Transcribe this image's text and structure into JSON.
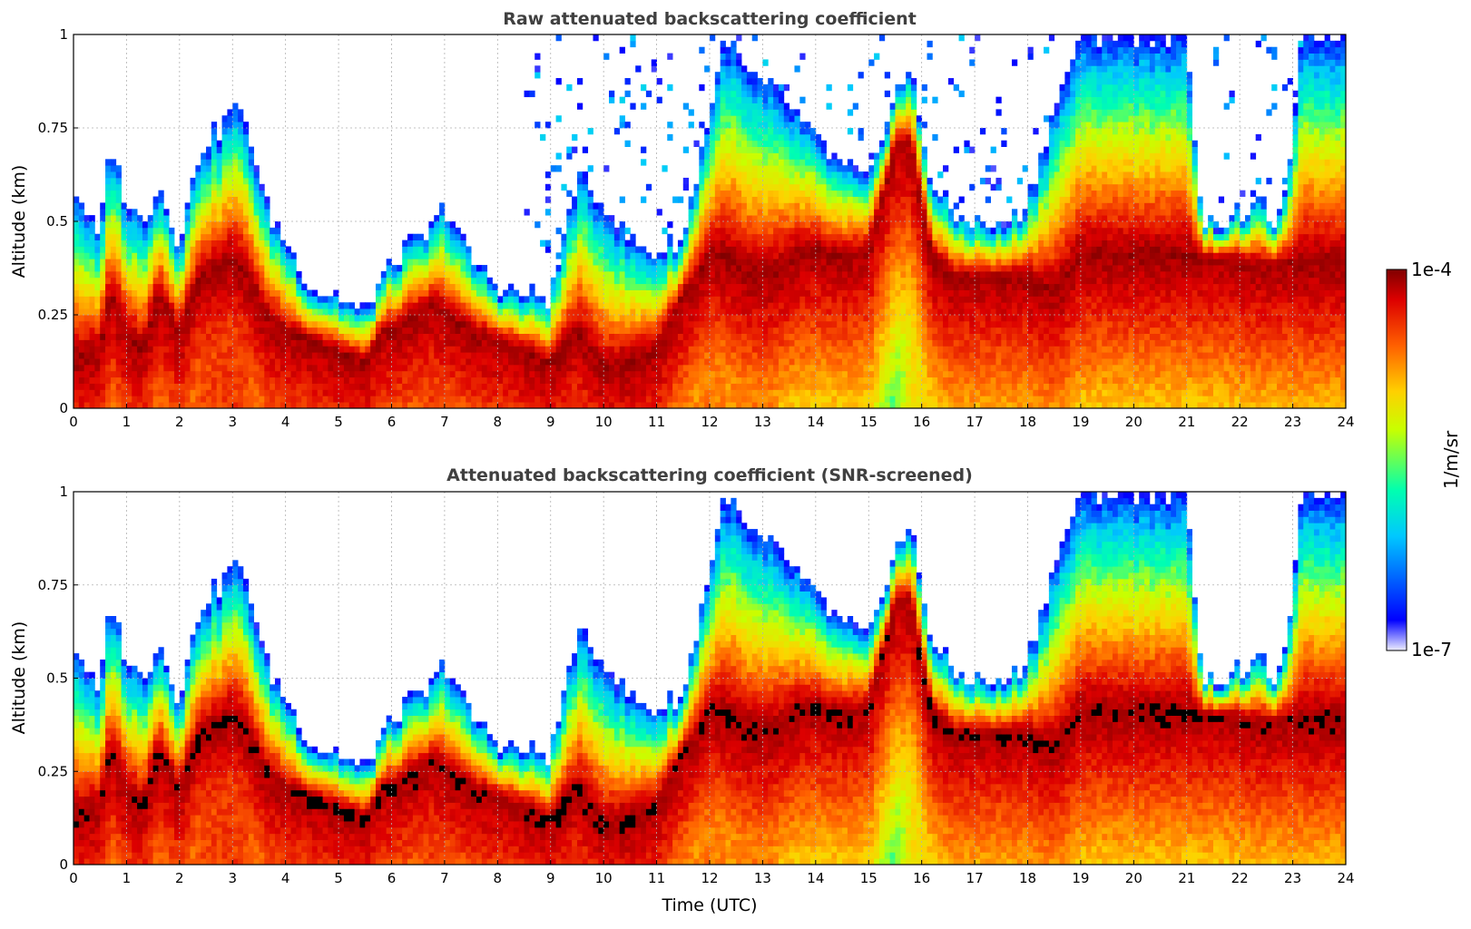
{
  "chart_data": [
    {
      "type": "heatmap",
      "title": "Raw attenuated backscattering coefficient",
      "xlabel": "",
      "ylabel": "Altitude (km)",
      "xlim": [
        0,
        24
      ],
      "ylim": [
        0,
        1
      ],
      "xticks": [
        "0",
        "1",
        "2",
        "3",
        "4",
        "5",
        "6",
        "7",
        "8",
        "9",
        "10",
        "11",
        "12",
        "13",
        "14",
        "15",
        "16",
        "17",
        "18",
        "19",
        "20",
        "21",
        "22",
        "23",
        "24"
      ],
      "yticks": [
        "0",
        "0.25",
        "0.5",
        "0.75",
        "1"
      ],
      "grid": true,
      "screened": false
    },
    {
      "type": "heatmap",
      "title": "Attenuated backscattering coefficient (SNR-screened)",
      "xlabel": "Time (UTC)",
      "ylabel": "Altitude (km)",
      "xlim": [
        0,
        24
      ],
      "ylim": [
        0,
        1
      ],
      "xticks": [
        "0",
        "1",
        "2",
        "3",
        "4",
        "5",
        "6",
        "7",
        "8",
        "9",
        "10",
        "11",
        "12",
        "13",
        "14",
        "15",
        "16",
        "17",
        "18",
        "19",
        "20",
        "21",
        "22",
        "23",
        "24"
      ],
      "yticks": [
        "0",
        "0.25",
        "0.5",
        "0.75",
        "1"
      ],
      "grid": true,
      "screened": true
    }
  ],
  "colorbar": {
    "label": "1/m/sr",
    "max_label": "1e-4",
    "min_label": "1e-7",
    "scale": "log",
    "colormap": [
      "#eeeeff",
      "#0000ff",
      "#00c8ff",
      "#00ffb0",
      "#c8ff00",
      "#ffd000",
      "#ff6000",
      "#dd0000",
      "#800000"
    ],
    "saturated_color": "#000000"
  },
  "profile": {
    "comment_free_key": true,
    "t": [
      0,
      0.5,
      0.7,
      1.0,
      1.3,
      1.6,
      2.0,
      2.4,
      2.8,
      3.0,
      3.3,
      3.6,
      4.0,
      4.5,
      5.0,
      5.5,
      5.8,
      6.2,
      6.8,
      7.0,
      7.5,
      8.0,
      8.5,
      9.0,
      9.5,
      10.0,
      10.5,
      11.0,
      11.5,
      12.0,
      12.3,
      12.7,
      13.2,
      13.6,
      14.0,
      14.5,
      15.0,
      15.5,
      15.8,
      16.2,
      16.6,
      17.0,
      17.5,
      18.0,
      18.5,
      19.0,
      19.5,
      20.0,
      20.5,
      21.0,
      21.3,
      21.8,
      22.3,
      22.8,
      23.2,
      23.6,
      24.0
    ],
    "top_km": [
      0.6,
      0.45,
      0.72,
      0.55,
      0.5,
      0.6,
      0.45,
      0.7,
      0.75,
      0.82,
      0.75,
      0.55,
      0.45,
      0.32,
      0.3,
      0.25,
      0.35,
      0.42,
      0.48,
      0.55,
      0.4,
      0.33,
      0.3,
      0.3,
      0.62,
      0.55,
      0.45,
      0.42,
      0.45,
      0.8,
      1.0,
      0.9,
      0.85,
      0.8,
      0.72,
      0.65,
      0.6,
      0.85,
      0.9,
      0.6,
      0.52,
      0.5,
      0.48,
      0.55,
      0.8,
      1.0,
      1.0,
      1.0,
      1.0,
      1.0,
      0.5,
      0.5,
      0.55,
      0.5,
      1.0,
      1.0,
      1.0
    ],
    "core_km": [
      0.12,
      0.15,
      0.3,
      0.2,
      0.15,
      0.3,
      0.2,
      0.35,
      0.38,
      0.4,
      0.35,
      0.25,
      0.2,
      0.18,
      0.15,
      0.12,
      0.2,
      0.22,
      0.28,
      0.25,
      0.2,
      0.18,
      0.15,
      0.12,
      0.2,
      0.1,
      0.12,
      0.15,
      0.3,
      0.4,
      0.4,
      0.35,
      0.35,
      0.4,
      0.42,
      0.4,
      0.42,
      0.7,
      0.7,
      0.4,
      0.35,
      0.35,
      0.35,
      0.35,
      0.3,
      0.4,
      0.4,
      0.4,
      0.4,
      0.4,
      0.4,
      0.4,
      0.38,
      0.38,
      0.38,
      0.38,
      0.38
    ],
    "base_level": [
      0.7,
      0.72,
      0.75,
      0.7,
      0.72,
      0.72,
      0.7,
      0.78,
      0.8,
      0.8,
      0.78,
      0.72,
      0.7,
      0.75,
      0.75,
      0.72,
      0.7,
      0.75,
      0.8,
      0.78,
      0.75,
      0.75,
      0.72,
      0.7,
      0.72,
      0.68,
      0.7,
      0.7,
      0.68,
      0.72,
      0.7,
      0.72,
      0.72,
      0.45,
      0.4,
      0.38,
      0.35,
      0.4,
      0.6,
      0.6,
      0.55,
      0.55,
      0.6,
      0.6,
      0.55,
      0.6,
      0.58,
      0.58,
      0.6,
      0.55,
      0.5,
      0.05,
      0.05,
      0.05,
      0.3,
      0.25,
      0.05
    ]
  }
}
